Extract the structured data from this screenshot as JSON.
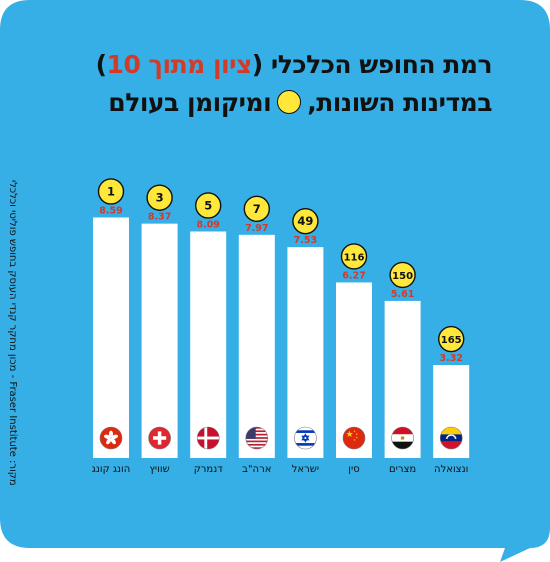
{
  "title": {
    "line1_pre": "רמת החופש הכלכלי (",
    "line1_highlight": "ציון מתוך 10",
    "line1_post": ")",
    "line2_pre": "במדינות השונות,",
    "line2_post": "ומיקומן בעולם"
  },
  "source": "מקור: Fraser Institute - מכון מחקר קנדי העוסק בחופש פוליטי וכלכלי",
  "colors": {
    "background": "#36aee6",
    "bar": "#ffffff",
    "value_label": "#d23b2a",
    "rank_circle": "#ffe83a",
    "text": "#111111"
  },
  "chart_data": {
    "type": "bar",
    "title": "רמת החופש הכלכלי (ציון מתוך 10) במדינות השונות, ומיקומן בעולם",
    "categories": [
      "הונג קונג",
      "שוויץ",
      "דנמרק",
      "ארה\"ב",
      "ישראל",
      "סין",
      "מצרים",
      "ונצואלה"
    ],
    "values": [
      8.59,
      8.37,
      8.09,
      7.97,
      7.53,
      6.27,
      5.61,
      3.32
    ],
    "value_labels": [
      "8.59",
      "8.37",
      "8.09",
      "7.97",
      "7.53",
      "6.27",
      "5.61",
      "3.32"
    ],
    "ranks": [
      "1",
      "3",
      "5",
      "7",
      "49",
      "116",
      "150",
      "165"
    ],
    "flags": [
      "flag-hong-kong",
      "flag-switzerland",
      "flag-denmark",
      "flag-usa",
      "flag-israel",
      "flag-china",
      "flag-egypt",
      "flag-venezuela"
    ],
    "ylim": [
      0,
      10
    ],
    "grid": false,
    "legend": "none"
  }
}
